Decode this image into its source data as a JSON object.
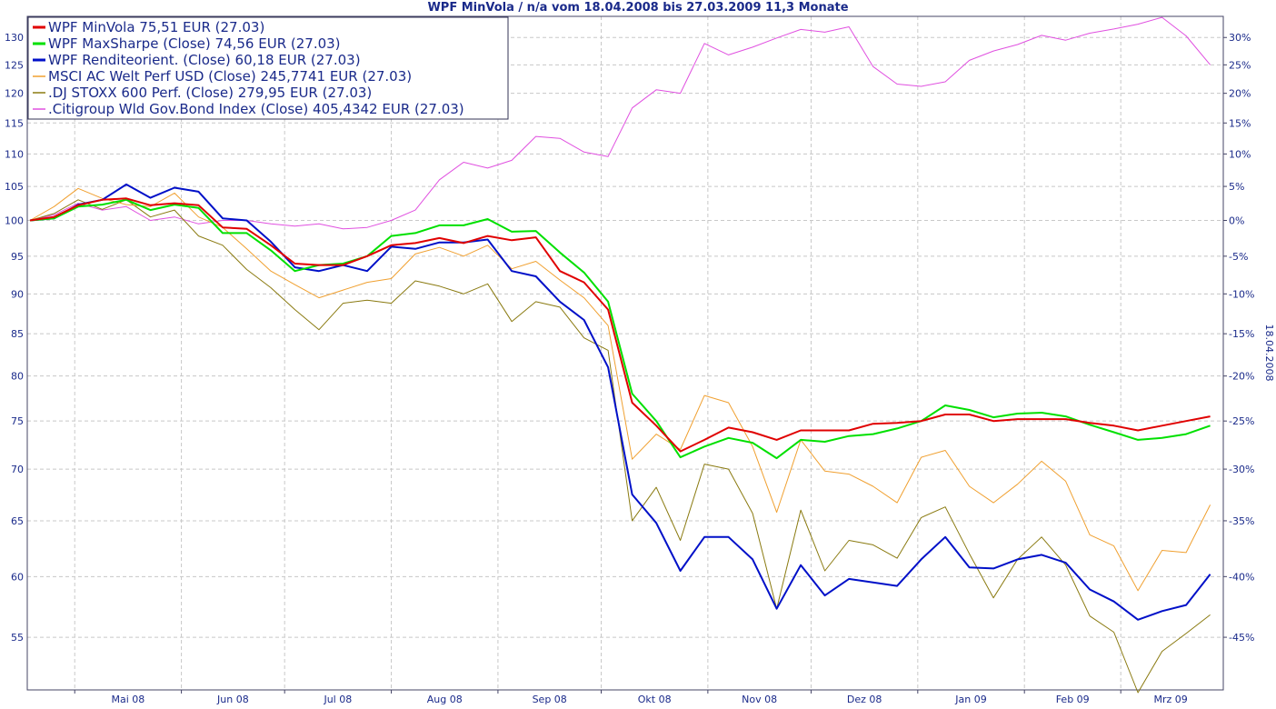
{
  "chart_data": {
    "type": "line",
    "title": "WPF MinVola / n/a vom 18.04.2008 bis 27.03.2009 11,3 Monate",
    "side_label": "18.04.2008",
    "x_ticks": [
      "Mai 08",
      "Jun 08",
      "Jul 08",
      "Aug 08",
      "Sep 08",
      "Okt 08",
      "Nov 08",
      "Dez 08",
      "Jan 09",
      "Feb 09",
      "Mrz 09"
    ],
    "y_left_ticks": [
      55,
      60,
      65,
      70,
      75,
      80,
      85,
      90,
      95,
      100,
      105,
      110,
      115,
      120,
      125,
      130
    ],
    "y_right_ticks": [
      "-45%",
      "-40%",
      "-35%",
      "-30%",
      "-25%",
      "-20%",
      "-15%",
      "-10%",
      "-5%",
      "0%",
      "5%",
      "10%",
      "15%",
      "20%",
      "25%",
      "30%"
    ],
    "y_scale": "log",
    "ylim": [
      51,
      134
    ],
    "x_start": "2008-04-18",
    "x_step_days": 7,
    "grid": true,
    "legend_position": "top-left",
    "series": [
      {
        "name": "WPF MinVola 75,51 EUR (27.03)",
        "color": "#e00000",
        "width": 2,
        "values": [
          100,
          100.5,
          102.2,
          103,
          103.2,
          102.2,
          102.5,
          102.2,
          99,
          98.8,
          96.5,
          94,
          93.8,
          93.8,
          95,
          96.5,
          96.8,
          97.5,
          96.8,
          97.8,
          97.2,
          97.6,
          93,
          91.5,
          88,
          77,
          74.5,
          71.8,
          73,
          74.3,
          73.8,
          73,
          74,
          74,
          74,
          74.7,
          74.8,
          75,
          75.7,
          75.7,
          75,
          75.2,
          75.2,
          75.2,
          74.8,
          74.5,
          74,
          74.5,
          75,
          75.5
        ]
      },
      {
        "name": "WPF MaxSharpe (Close) 74,56 EUR (27.03)",
        "color": "#00e000",
        "width": 2,
        "values": [
          100,
          100.3,
          102,
          102.3,
          103,
          101.5,
          102.3,
          101.8,
          98.2,
          98.2,
          95.8,
          93,
          93.8,
          94,
          95,
          97.8,
          98.2,
          99.3,
          99.3,
          100.2,
          98.4,
          98.5,
          95.5,
          92.8,
          89,
          78,
          75,
          71.2,
          72.3,
          73.2,
          72.7,
          71.1,
          73,
          72.8,
          73.4,
          73.6,
          74.2,
          75,
          76.7,
          76.2,
          75.4,
          75.8,
          75.9,
          75.5,
          74.6,
          73.8,
          73,
          73.2,
          73.6,
          74.5
        ]
      },
      {
        "name": "WPF Renditeorient. (Close) 60,18 EUR (27.03)",
        "color": "#0010c8",
        "width": 2,
        "values": [
          100,
          100.3,
          102.3,
          103,
          105.3,
          103.3,
          104.8,
          104.2,
          100.3,
          100,
          97,
          93.5,
          93,
          93.8,
          93,
          96.3,
          96,
          96.9,
          96.9,
          97.3,
          93,
          92.3,
          89,
          86.7,
          81,
          67.5,
          64.8,
          60.5,
          63.5,
          63.5,
          61.5,
          57.3,
          61,
          58.4,
          59.8,
          59.5,
          59.2,
          61.5,
          63.5,
          60.8,
          60.7,
          61.5,
          61.9,
          61.2,
          58.9,
          57.9,
          56.4,
          57.1,
          57.6,
          60.2
        ]
      },
      {
        "name": "MSCI AC Welt Perf USD (Close) 245,7741 EUR (27.03)",
        "color": "#f0a030",
        "width": 1,
        "values": [
          100,
          102,
          104.7,
          103.2,
          102.3,
          102,
          104,
          100.5,
          99,
          96,
          93,
          91.2,
          89.5,
          90.5,
          91.5,
          92,
          95.3,
          96.2,
          95,
          96.5,
          93.3,
          94.3,
          91.8,
          89.5,
          86,
          71,
          73.6,
          72,
          77.8,
          77,
          72.3,
          65.8,
          73,
          69.8,
          69.5,
          68.3,
          66.7,
          71.2,
          71.9,
          68.3,
          66.7,
          68.5,
          70.8,
          68.8,
          63.7,
          62.7,
          58.8,
          62.3,
          62.1,
          66.5
        ]
      },
      {
        "name": ".DJ STOXX 600 Perf. (Close) 279,95 EUR (27.03)",
        "color": "#8a7a10",
        "width": 1,
        "values": [
          100,
          101,
          103,
          101.6,
          103,
          100.5,
          101.5,
          97.8,
          96.5,
          93.2,
          90.8,
          88,
          85.5,
          88.8,
          89.2,
          88.8,
          91.7,
          91,
          90,
          91.3,
          86.5,
          89,
          88.3,
          84.5,
          83,
          65,
          68.2,
          63.2,
          70.5,
          70,
          65.7,
          57.3,
          66,
          60.5,
          63.2,
          62.8,
          61.6,
          65.3,
          66.3,
          62,
          58.2,
          61.5,
          63.5,
          61,
          56.7,
          55.4,
          50.8,
          53.9,
          55.3,
          56.8
        ]
      },
      {
        "name": ".Citigroup Wld Gov.Bond Index (Close) 405,4342 EUR (27.03)",
        "color": "#e050e0",
        "width": 1,
        "values": [
          100,
          100.8,
          102.5,
          101.5,
          102,
          100,
          100.5,
          99.5,
          100,
          100,
          99.5,
          99.2,
          99.5,
          98.8,
          99,
          100,
          101.5,
          106,
          108.7,
          107.8,
          109,
          112.8,
          112.5,
          110.3,
          109.6,
          117.5,
          120.6,
          120,
          128.9,
          126.8,
          128.2,
          129.9,
          131.5,
          131,
          132,
          124.7,
          121.6,
          121.2,
          122,
          125.8,
          127.5,
          128.7,
          130.4,
          129.5,
          130.8,
          131.6,
          132.5,
          133.8,
          130.3,
          125
        ]
      }
    ]
  }
}
